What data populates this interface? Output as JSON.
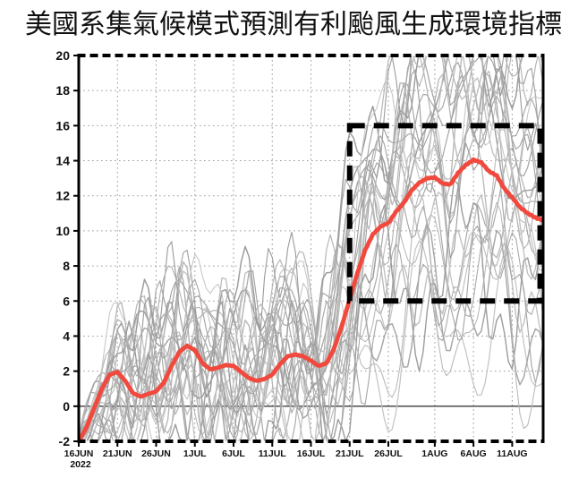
{
  "title": "美國系集氣候模式預測有利颱風生成環境指標",
  "chart_data": {
    "type": "line",
    "title": "美國系集氣候模式預測有利颱風生成環境指標",
    "x_axis": {
      "year_label": "2022",
      "x_start_day": 0,
      "x_step_days": 1,
      "total_days": 60,
      "ticks": [
        {
          "label": "16JUN",
          "day": 0
        },
        {
          "label": "21JUN",
          "day": 5
        },
        {
          "label": "26JUN",
          "day": 10
        },
        {
          "label": "1JUL",
          "day": 15
        },
        {
          "label": "6JUL",
          "day": 20
        },
        {
          "label": "11JUL",
          "day": 25
        },
        {
          "label": "16JUL",
          "day": 30
        },
        {
          "label": "21JUL",
          "day": 35
        },
        {
          "label": "26JUL",
          "day": 40
        },
        {
          "label": "1AUG",
          "day": 46
        },
        {
          "label": "6AUG",
          "day": 51
        },
        {
          "label": "11AUG",
          "day": 56
        }
      ]
    },
    "y_axis": {
      "min": -2,
      "max": 20,
      "tick_step": 2,
      "ticks": [
        20,
        18,
        16,
        14,
        12,
        10,
        8,
        6,
        4,
        2,
        0,
        -2
      ]
    },
    "grid": {
      "h_values": [
        2,
        4,
        6,
        8,
        10,
        12,
        14,
        16,
        18
      ],
      "v_days": [
        5,
        10,
        15,
        20,
        25,
        30,
        35,
        40,
        46,
        51,
        56
      ],
      "zero_line_value": 0,
      "grid_color": "#9a9a9a",
      "zero_line_color": "#3c3c3c"
    },
    "series": [
      {
        "name": "ensemble-mean",
        "color": "#f2493e",
        "style": "bold-marker-line",
        "values": [
          -2.0,
          -1.2,
          -0.1,
          1.0,
          1.8,
          1.95,
          1.45,
          0.75,
          0.55,
          0.7,
          0.85,
          1.35,
          2.3,
          3.1,
          3.45,
          3.2,
          2.45,
          2.1,
          2.2,
          2.35,
          2.3,
          1.95,
          1.6,
          1.45,
          1.55,
          1.8,
          2.4,
          2.85,
          2.95,
          2.85,
          2.6,
          2.3,
          2.45,
          3.3,
          4.6,
          6.1,
          7.6,
          8.9,
          9.8,
          10.25,
          10.45,
          11.1,
          11.6,
          12.3,
          12.75,
          13.0,
          13.05,
          12.7,
          12.65,
          13.3,
          13.75,
          14.05,
          13.9,
          13.4,
          13.15,
          12.4,
          11.9,
          11.35,
          11.0,
          10.75,
          10.6
        ]
      }
    ],
    "ensemble": {
      "name": "ensemble-members",
      "count": 26,
      "seed": 11,
      "colors": [
        "#b7b7b7",
        "#a7a7a7",
        "#c3c3c3",
        "#9d9d9d"
      ]
    },
    "highlight_box": {
      "day_start": 35,
      "day_end": 59.6,
      "y_min": 6,
      "y_max": 16,
      "style": "dashed",
      "color": "#000000"
    }
  }
}
